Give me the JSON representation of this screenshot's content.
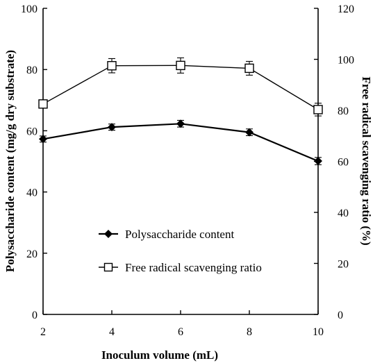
{
  "chart_data": {
    "type": "line",
    "xlabel": "Inoculum volume (mL)",
    "ylabel_left": "Polysaccharide content (mg/g dry substrate)",
    "ylabel_right": "Free radical scavenging ratio (%)",
    "x": [
      2,
      4,
      6,
      8,
      10
    ],
    "xlim": [
      2,
      10
    ],
    "ylim_left": [
      0,
      100
    ],
    "ylim_right": [
      0,
      120
    ],
    "x_ticks": [
      "2",
      "4",
      "6",
      "8",
      "10"
    ],
    "y_ticks_left": [
      "0",
      "20",
      "40",
      "60",
      "80",
      "100"
    ],
    "y_ticks_right": [
      "0",
      "20",
      "40",
      "60",
      "80",
      "100",
      "120"
    ],
    "grid": false,
    "legend_position": "center-left",
    "series": [
      {
        "name": "Polysaccharide content",
        "axis": "left",
        "marker": "filled-diamond",
        "values": [
          57.3,
          61.2,
          62.3,
          59.5,
          50.1
        ],
        "errors": [
          1.0,
          1.0,
          1.1,
          1.1,
          1.2
        ]
      },
      {
        "name": "Free radical scavenging ratio",
        "axis": "right",
        "marker": "open-square",
        "values": [
          82.5,
          97.5,
          97.6,
          96.5,
          80.3
        ],
        "errors": [
          1.2,
          2.8,
          3.0,
          2.7,
          2.5
        ]
      }
    ],
    "colors": {
      "line": "#000000",
      "background": "#ffffff"
    }
  }
}
